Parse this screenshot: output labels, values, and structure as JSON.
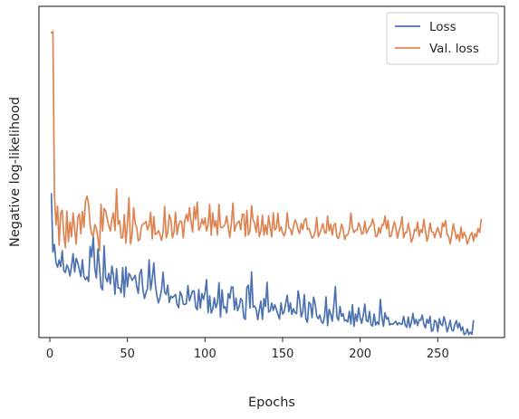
{
  "chart_data": {
    "type": "line",
    "xlabel": "Epochs",
    "ylabel": "Negative log-likelihood",
    "xlim": [
      -7,
      293
    ],
    "ylim": [
      0.0,
      1.0
    ],
    "x_ticks": [
      0,
      50,
      100,
      150,
      200,
      250
    ],
    "y_ticks_shown": false,
    "grid": false,
    "legend": "top-right",
    "x_start": 1,
    "series": [
      {
        "name": "Loss",
        "color": "#4c72b0",
        "values": [
          0.434,
          0.258,
          0.281,
          0.226,
          0.212,
          0.234,
          0.214,
          0.262,
          0.203,
          0.196,
          0.219,
          0.208,
          0.186,
          0.216,
          0.253,
          0.198,
          0.239,
          0.226,
          0.206,
          0.184,
          0.235,
          0.184,
          0.175,
          0.183,
          0.169,
          0.275,
          0.243,
          0.306,
          0.208,
          0.18,
          0.268,
          0.214,
          0.152,
          0.144,
          0.277,
          0.181,
          0.168,
          0.194,
          0.162,
          0.216,
          0.188,
          0.131,
          0.208,
          0.15,
          0.15,
          0.135,
          0.211,
          0.123,
          0.213,
          0.153,
          0.194,
          0.186,
          0.173,
          0.179,
          0.188,
          0.155,
          0.133,
          0.193,
          0.206,
          0.144,
          0.118,
          0.136,
          0.149,
          0.235,
          0.144,
          0.177,
          0.225,
          0.16,
          0.127,
          0.105,
          0.12,
          0.145,
          0.197,
          0.136,
          0.13,
          0.158,
          0.106,
          0.125,
          0.12,
          0.125,
          0.13,
          0.1,
          0.09,
          0.138,
          0.127,
          0.101,
          0.1,
          0.103,
          0.157,
          0.111,
          0.126,
          0.141,
          0.14,
          0.092,
          0.084,
          0.145,
          0.089,
          0.133,
          0.115,
          0.135,
          0.175,
          0.075,
          0.126,
          0.074,
          0.086,
          0.12,
          0.09,
          0.104,
          0.166,
          0.062,
          0.144,
          0.089,
          0.093,
          0.074,
          0.133,
          0.119,
          0.153,
          0.152,
          0.084,
          0.119,
          0.081,
          0.093,
          0.118,
          0.111,
          0.06,
          0.055,
          0.152,
          0.158,
          0.089,
          0.198,
          0.092,
          0.095,
          0.085,
          0.054,
          0.083,
          0.11,
          0.055,
          0.118,
          0.094,
          0.167,
          0.077,
          0.08,
          0.104,
          0.082,
          0.099,
          0.085,
          0.07,
          0.056,
          0.105,
          0.071,
          0.077,
          0.103,
          0.128,
          0.078,
          0.105,
          0.07,
          0.087,
          0.075,
          0.072,
          0.141,
          0.112,
          0.062,
          0.077,
          0.13,
          0.057,
          0.046,
          0.107,
          0.101,
          0.06,
          0.122,
          0.102,
          0.064,
          0.057,
          0.068,
          0.048,
          0.043,
          0.062,
          0.123,
          0.036,
          0.085,
          0.071,
          0.049,
          0.096,
          0.154,
          0.062,
          0.052,
          0.094,
          0.064,
          0.072,
          0.05,
          0.053,
          0.047,
          0.079,
          0.041,
          0.099,
          0.034,
          0.071,
          0.049,
          0.09,
          0.059,
          0.043,
          0.068,
          0.101,
          0.051,
          0.048,
          0.079,
          0.038,
          0.035,
          0.071,
          0.038,
          0.047,
          0.039,
          0.115,
          0.062,
          0.034,
          0.075,
          0.056,
          0.061,
          0.038,
          0.042,
          0.04,
          0.045,
          0.049,
          0.038,
          0.045,
          0.041,
          0.04,
          0.064,
          0.038,
          0.031,
          0.062,
          0.03,
          0.046,
          0.073,
          0.041,
          0.055,
          0.036,
          0.054,
          0.052,
          0.068,
          0.041,
          0.029,
          0.055,
          0.043,
          0.064,
          0.019,
          0.023,
          0.052,
          0.047,
          0.018,
          0.057,
          0.04,
          0.036,
          0.063,
          0.044,
          0.017,
          0.032,
          0.052,
          0.023,
          0.02,
          0.04,
          0.051,
          0.029,
          0.044,
          0.021,
          0.032,
          0.009,
          0.012,
          0.026,
          0.009,
          0.016,
          0.01,
          0.051
        ]
      },
      {
        "name": "Val. loss",
        "color": "#dd8452",
        "values": [
          0.92,
          0.924,
          0.429,
          0.34,
          0.397,
          0.279,
          0.376,
          0.385,
          0.311,
          0.271,
          0.382,
          0.29,
          0.349,
          0.304,
          0.376,
          0.328,
          0.282,
          0.362,
          0.373,
          0.313,
          0.381,
          0.333,
          0.413,
          0.427,
          0.402,
          0.339,
          0.313,
          0.305,
          0.341,
          0.331,
          0.3,
          0.262,
          0.403,
          0.322,
          0.39,
          0.382,
          0.358,
          0.338,
          0.322,
          0.357,
          0.376,
          0.323,
          0.449,
          0.342,
          0.353,
          0.301,
          0.301,
          0.371,
          0.285,
          0.341,
          0.422,
          0.283,
          0.31,
          0.392,
          0.346,
          0.332,
          0.292,
          0.297,
          0.334,
          0.342,
          0.345,
          0.351,
          0.325,
          0.339,
          0.378,
          0.298,
          0.365,
          0.311,
          0.314,
          0.323,
          0.311,
          0.293,
          0.318,
          0.396,
          0.301,
          0.318,
          0.371,
          0.356,
          0.301,
          0.319,
          0.379,
          0.311,
          0.339,
          0.352,
          0.35,
          0.301,
          0.353,
          0.372,
          0.351,
          0.392,
          0.349,
          0.319,
          0.395,
          0.357,
          0.409,
          0.324,
          0.333,
          0.358,
          0.341,
          0.361,
          0.322,
          0.34,
          0.402,
          0.309,
          0.376,
          0.334,
          0.353,
          0.31,
          0.402,
          0.334,
          0.331,
          0.336,
          0.343,
          0.367,
          0.333,
          0.302,
          0.346,
          0.406,
          0.321,
          0.339,
          0.347,
          0.352,
          0.325,
          0.372,
          0.372,
          0.306,
          0.384,
          0.31,
          0.322,
          0.398,
          0.355,
          0.345,
          0.318,
          0.367,
          0.305,
          0.322,
          0.369,
          0.309,
          0.34,
          0.311,
          0.368,
          0.333,
          0.304,
          0.377,
          0.325,
          0.33,
          0.375,
          0.321,
          0.335,
          0.316,
          0.307,
          0.322,
          0.377,
          0.332,
          0.327,
          0.31,
          0.335,
          0.355,
          0.346,
          0.325,
          0.314,
          0.345,
          0.326,
          0.354,
          0.36,
          0.327,
          0.33,
          0.314,
          0.3,
          0.305,
          0.32,
          0.363,
          0.304,
          0.315,
          0.329,
          0.344,
          0.318,
          0.315,
          0.367,
          0.322,
          0.342,
          0.309,
          0.339,
          0.345,
          0.304,
          0.299,
          0.316,
          0.342,
          0.328,
          0.296,
          0.309,
          0.31,
          0.326,
          0.376,
          0.332,
          0.317,
          0.324,
          0.324,
          0.346,
          0.335,
          0.312,
          0.316,
          0.352,
          0.315,
          0.324,
          0.334,
          0.339,
          0.358,
          0.339,
          0.305,
          0.306,
          0.332,
          0.315,
          0.341,
          0.339,
          0.367,
          0.328,
          0.354,
          0.304,
          0.308,
          0.33,
          0.35,
          0.333,
          0.3,
          0.321,
          0.337,
          0.365,
          0.301,
          0.317,
          0.317,
          0.345,
          0.32,
          0.288,
          0.301,
          0.326,
          0.322,
          0.348,
          0.306,
          0.326,
          0.317,
          0.357,
          0.323,
          0.291,
          0.307,
          0.346,
          0.32,
          0.318,
          0.302,
          0.319,
          0.332,
          0.316,
          0.302,
          0.346,
          0.335,
          0.353,
          0.311,
          0.306,
          0.283,
          0.309,
          0.343,
          0.322,
          0.298,
          0.312,
          0.291,
          0.333,
          0.3,
          0.318,
          0.306,
          0.282,
          0.295,
          0.31,
          0.317,
          0.291,
          0.314,
          0.304,
          0.329,
          0.317,
          0.357
        ]
      }
    ]
  }
}
